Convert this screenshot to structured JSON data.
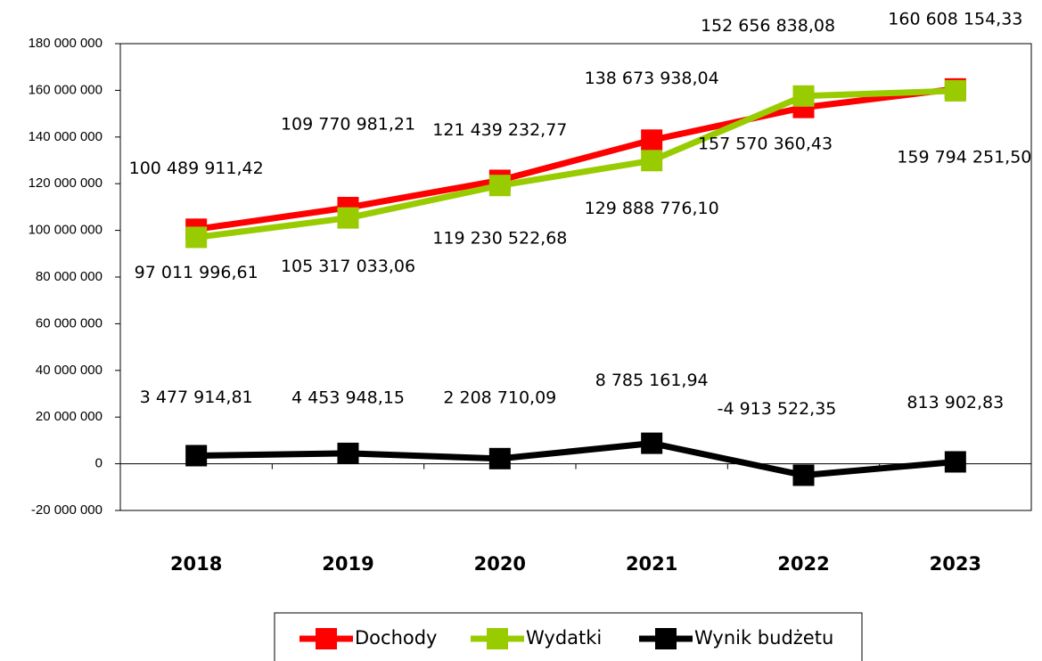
{
  "chart_data": {
    "type": "line",
    "categories": [
      "2018",
      "2019",
      "2020",
      "2021",
      "2022",
      "2023"
    ],
    "series": [
      {
        "name": "Dochody",
        "color": "#ff0000",
        "values": [
          100489911.42,
          109770981.21,
          121439232.77,
          138673938.04,
          152656838.08,
          160608154.33
        ],
        "value_labels": [
          "100 489 911,42",
          "109 770 981,21",
          "121 439 232,77",
          "138 673 938,04",
          "152 656 838,08",
          "160 608 154,33"
        ]
      },
      {
        "name": "Wydatki",
        "color": "#99cc00",
        "values": [
          97011996.61,
          105317033.06,
          119230522.68,
          129888776.1,
          157570360.43,
          159794251.5
        ],
        "value_labels": [
          "97 011 996,61",
          "105 317 033,06",
          "119 230 522,68",
          "129 888 776,10",
          "157 570 360,43",
          "159 794 251,50"
        ]
      },
      {
        "name": "Wynik budżetu",
        "color": "#000000",
        "values": [
          3477914.81,
          4453948.15,
          2208710.09,
          8785161.94,
          -4913522.35,
          813902.83
        ],
        "value_labels": [
          "3 477 914,81",
          "4 453 948,15",
          "2 208 710,09",
          "8 785 161,94",
          "-4 913 522,35",
          "813 902,83"
        ]
      }
    ],
    "ylim": [
      -20000000,
      180000000
    ],
    "yticks": [
      {
        "value": -20000000,
        "label": "-20 000 000"
      },
      0,
      {
        "value": 20000000,
        "label": "20 000 000"
      },
      {
        "value": 40000000,
        "label": "40 000 000"
      },
      {
        "value": 60000000,
        "label": "60 000 000"
      },
      {
        "value": 80000000,
        "label": "80 000 000"
      },
      {
        "value": 100000000,
        "label": "100 000 000"
      },
      {
        "value": 120000000,
        "label": "120 000 000"
      },
      {
        "value": 140000000,
        "label": "140 000 000"
      },
      {
        "value": 160000000,
        "label": "160 000 000"
      },
      {
        "value": 180000000,
        "label": "180 000 000"
      }
    ],
    "grid": false,
    "legend": "bottom"
  }
}
